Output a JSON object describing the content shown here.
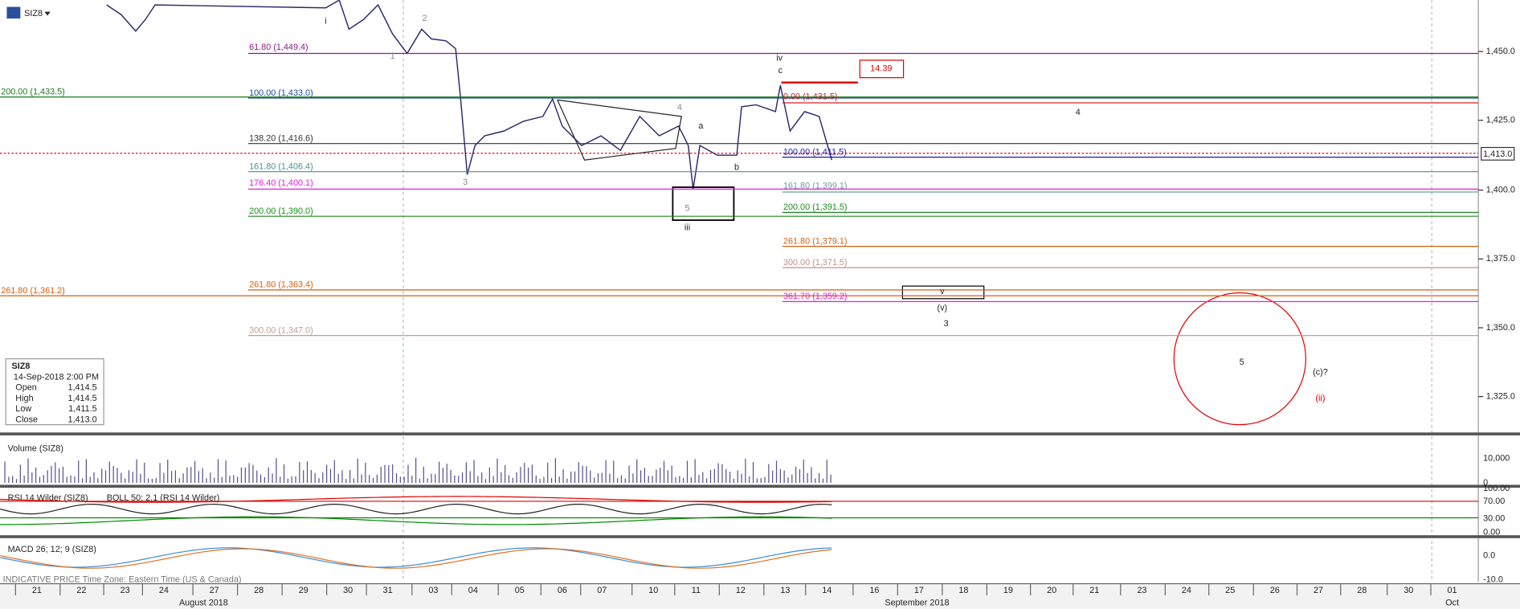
{
  "toolbar": {
    "symbol": "SIZ8"
  },
  "price_axis": {
    "ticks": [
      "1,450.0",
      "1,425.0",
      "1,400.0",
      "1,375.0",
      "1,350.0",
      "1,325.0"
    ],
    "last": "1,413.0"
  },
  "fib_levels": [
    "61.80 (1,449.4)",
    "200.00 (1,433.5)",
    "100.00 (1,433.0)",
    "0.00 (1,431.5)",
    "138.20 (1,416.6)",
    "100.00 (1,411.5)",
    "161.80 (1,406.4)",
    "176.40 (1,400.1)",
    "161.80 (1,399.1)",
    "200.00 (1,390.0)",
    "200.00 (1,391.5)",
    "261.80 (1,379.1)",
    "300.00 (1,371.5)",
    "261.80 (1,363.4)",
    "261.80 (1,361.2)",
    "361.70 (1,359.2)",
    "300.00 (1,347.0)"
  ],
  "wave_labels": [
    "i",
    "1",
    "2",
    "3",
    "iv",
    "c",
    "4",
    "a",
    "b",
    "5",
    "iii",
    "4",
    "v",
    "(v)",
    "3",
    "5",
    "(c)?",
    "(ii)"
  ],
  "target_box": "14.39",
  "info": {
    "symbol": "SIZ8",
    "time": "14-Sep-2018 2:00 PM",
    "rows": [
      [
        "Open",
        "1,414.5"
      ],
      [
        "High",
        "1,414.5"
      ],
      [
        "Low",
        "1,411.5"
      ],
      [
        "Close",
        "1,413.0"
      ]
    ]
  },
  "volume_panel": {
    "title": "Volume (SIZ8)",
    "ticks": [
      "10,000",
      "0"
    ]
  },
  "rsi_panel": {
    "title": "RSI 14 Wilder (SIZ8)",
    "overlay": "BOLL 50; 2.1 (RSI 14 Wilder)",
    "ticks": [
      "100.00",
      "70.00",
      "30.00",
      "0.00"
    ]
  },
  "macd_panel": {
    "title": "MACD 26; 12; 9 (SIZ8)",
    "ticks": [
      "0.0",
      "-10.0"
    ]
  },
  "status": "INDICATIVE PRICE   Time Zone: Eastern Time (US & Canada)",
  "date_axis": {
    "days": [
      "21",
      "22",
      "23",
      "24",
      "27",
      "28",
      "29",
      "30",
      "31",
      "03",
      "04",
      "05",
      "06",
      "07",
      "10",
      "11",
      "12",
      "13",
      "14",
      "16",
      "17",
      "18",
      "19",
      "20",
      "21",
      "23",
      "24",
      "25",
      "26",
      "27",
      "28",
      "30",
      "01"
    ],
    "months": [
      "August 2018",
      "September 2018",
      "Oct"
    ]
  }
}
